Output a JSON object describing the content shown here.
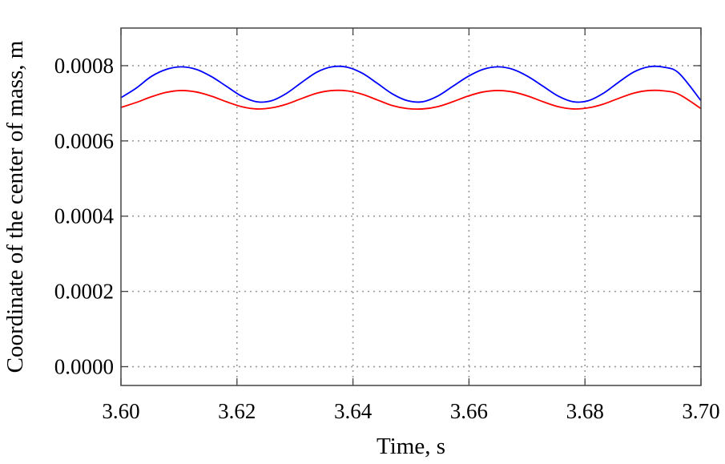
{
  "chart_data": {
    "type": "line",
    "title": "",
    "xlabel": "Time, s",
    "ylabel": "Coordinate of the center of mass, m",
    "xlim": [
      3.6,
      3.7
    ],
    "ylim": [
      -5e-05,
      0.0009
    ],
    "xticks": [
      3.6,
      3.62,
      3.64,
      3.66,
      3.68,
      3.7
    ],
    "xtick_labels": [
      "3.60",
      "3.62",
      "3.64",
      "3.66",
      "3.68",
      "3.70"
    ],
    "yticks": [
      0.0,
      0.0002,
      0.0004,
      0.0006,
      0.0008
    ],
    "ytick_labels": [
      "0.0000",
      "0.0002",
      "0.0004",
      "0.0006",
      "0.0008"
    ],
    "grid": true,
    "legend": "none",
    "series": [
      {
        "color": "#0000ff",
        "x": [
          3.6,
          3.6026,
          3.6052,
          3.6078,
          3.6104,
          3.613,
          3.6156,
          3.6182,
          3.6208,
          3.6234,
          3.626,
          3.6286,
          3.6312,
          3.6338,
          3.6364,
          3.639,
          3.6416,
          3.6442,
          3.6468,
          3.6494,
          3.652,
          3.6546,
          3.6572,
          3.6598,
          3.6624,
          3.665,
          3.6676,
          3.6702,
          3.6728,
          3.6754,
          3.678,
          3.6806,
          3.6832,
          3.6858,
          3.6884,
          3.691,
          3.6936,
          3.6962,
          3.7
        ],
        "y": [
          0.000715,
          0.00074,
          0.000771,
          0.00079,
          0.000797,
          0.00079,
          0.000771,
          0.000745,
          0.000719,
          0.000704,
          0.000707,
          0.000727,
          0.000756,
          0.000783,
          0.000797,
          0.000796,
          0.00078,
          0.000753,
          0.000725,
          0.000707,
          0.000704,
          0.000719,
          0.000745,
          0.000771,
          0.00079,
          0.000797,
          0.00079,
          0.000771,
          0.000745,
          0.000719,
          0.000704,
          0.000707,
          0.000727,
          0.000756,
          0.000783,
          0.000797,
          0.000796,
          0.00078,
          0.000707
        ]
      },
      {
        "color": "#ff0000",
        "x": [
          3.6,
          3.6026,
          3.6052,
          3.6078,
          3.6104,
          3.613,
          3.6156,
          3.6182,
          3.6208,
          3.6234,
          3.626,
          3.6286,
          3.6312,
          3.6338,
          3.6364,
          3.639,
          3.6416,
          3.6442,
          3.6468,
          3.6494,
          3.652,
          3.6546,
          3.6572,
          3.6598,
          3.6624,
          3.665,
          3.6676,
          3.6702,
          3.6728,
          3.6754,
          3.678,
          3.6806,
          3.6832,
          3.6858,
          3.6884,
          3.691,
          3.6936,
          3.6962,
          3.7
        ],
        "y": [
          0.000689,
          0.000702,
          0.000717,
          0.000729,
          0.000734,
          0.00073,
          0.000719,
          0.000704,
          0.000691,
          0.000685,
          0.000688,
          0.000698,
          0.000713,
          0.000727,
          0.000734,
          0.000733,
          0.000724,
          0.000709,
          0.000694,
          0.000686,
          0.000685,
          0.000691,
          0.000704,
          0.000719,
          0.00073,
          0.000734,
          0.00073,
          0.000719,
          0.000704,
          0.000691,
          0.000685,
          0.000688,
          0.000698,
          0.000713,
          0.000727,
          0.000734,
          0.000733,
          0.000724,
          0.000686
        ]
      }
    ]
  }
}
